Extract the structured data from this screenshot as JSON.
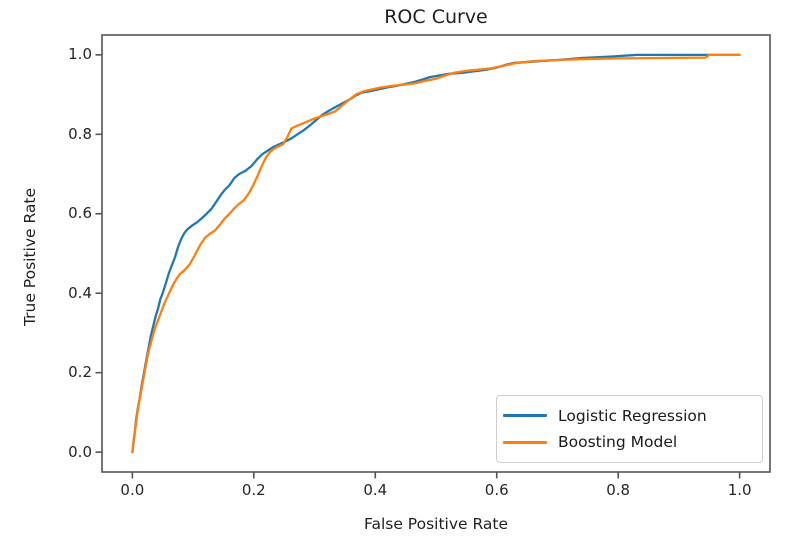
{
  "title": "ROC Curve",
  "axes": {
    "xlabel": "False Positive Rate",
    "ylabel": "True Positive Rate",
    "x_ticks": [
      "0.0",
      "0.2",
      "0.4",
      "0.6",
      "0.8",
      "1.0"
    ],
    "y_ticks": [
      "0.0",
      "0.2",
      "0.4",
      "0.6",
      "0.8",
      "1.0"
    ]
  },
  "legend": {
    "position": "lower right",
    "entries": [
      {
        "label": "Logistic Regression",
        "color": "#1f77b4"
      },
      {
        "label": "Boosting Model",
        "color": "#ff7f0e"
      }
    ]
  },
  "colors": {
    "logistic_regression": "#1f77b4",
    "boosting_model": "#ff7f0e",
    "spine": "#555555",
    "text": "#262626"
  },
  "chart_data": {
    "type": "line",
    "title": "ROC Curve",
    "xlabel": "False Positive Rate",
    "ylabel": "True Positive Rate",
    "xlim": [
      -0.05,
      1.05
    ],
    "ylim": [
      -0.05,
      1.05
    ],
    "grid": false,
    "legend_position": "lower right",
    "series": [
      {
        "name": "Logistic Regression",
        "color": "#1f77b4",
        "points": [
          [
            0.0,
            0.0
          ],
          [
            0.002,
            0.025
          ],
          [
            0.004,
            0.05
          ],
          [
            0.006,
            0.08
          ],
          [
            0.009,
            0.11
          ],
          [
            0.012,
            0.135
          ],
          [
            0.015,
            0.165
          ],
          [
            0.018,
            0.19
          ],
          [
            0.021,
            0.215
          ],
          [
            0.024,
            0.24
          ],
          [
            0.027,
            0.265
          ],
          [
            0.03,
            0.29
          ],
          [
            0.034,
            0.315
          ],
          [
            0.038,
            0.34
          ],
          [
            0.042,
            0.36
          ],
          [
            0.046,
            0.385
          ],
          [
            0.05,
            0.4
          ],
          [
            0.055,
            0.425
          ],
          [
            0.06,
            0.45
          ],
          [
            0.065,
            0.47
          ],
          [
            0.07,
            0.49
          ],
          [
            0.075,
            0.515
          ],
          [
            0.08,
            0.535
          ],
          [
            0.085,
            0.55
          ],
          [
            0.09,
            0.56
          ],
          [
            0.098,
            0.57
          ],
          [
            0.106,
            0.578
          ],
          [
            0.114,
            0.588
          ],
          [
            0.122,
            0.6
          ],
          [
            0.13,
            0.612
          ],
          [
            0.138,
            0.63
          ],
          [
            0.146,
            0.648
          ],
          [
            0.152,
            0.66
          ],
          [
            0.16,
            0.672
          ],
          [
            0.168,
            0.69
          ],
          [
            0.176,
            0.7
          ],
          [
            0.186,
            0.708
          ],
          [
            0.196,
            0.72
          ],
          [
            0.206,
            0.738
          ],
          [
            0.214,
            0.75
          ],
          [
            0.222,
            0.758
          ],
          [
            0.232,
            0.768
          ],
          [
            0.242,
            0.775
          ],
          [
            0.252,
            0.782
          ],
          [
            0.262,
            0.79
          ],
          [
            0.272,
            0.8
          ],
          [
            0.282,
            0.81
          ],
          [
            0.292,
            0.822
          ],
          [
            0.302,
            0.835
          ],
          [
            0.312,
            0.848
          ],
          [
            0.322,
            0.858
          ],
          [
            0.334,
            0.868
          ],
          [
            0.346,
            0.878
          ],
          [
            0.358,
            0.888
          ],
          [
            0.368,
            0.898
          ],
          [
            0.378,
            0.905
          ],
          [
            0.39,
            0.908
          ],
          [
            0.405,
            0.913
          ],
          [
            0.42,
            0.918
          ],
          [
            0.435,
            0.922
          ],
          [
            0.45,
            0.927
          ],
          [
            0.465,
            0.932
          ],
          [
            0.478,
            0.938
          ],
          [
            0.49,
            0.944
          ],
          [
            0.505,
            0.948
          ],
          [
            0.52,
            0.952
          ],
          [
            0.545,
            0.955
          ],
          [
            0.56,
            0.958
          ],
          [
            0.58,
            0.962
          ],
          [
            0.6,
            0.968
          ],
          [
            0.615,
            0.975
          ],
          [
            0.63,
            0.98
          ],
          [
            0.66,
            0.983
          ],
          [
            0.7,
            0.987
          ],
          [
            0.74,
            0.992
          ],
          [
            0.79,
            0.996
          ],
          [
            0.83,
            1.0
          ],
          [
            1.0,
            1.0
          ]
        ]
      },
      {
        "name": "Boosting Model",
        "color": "#ff7f0e",
        "points": [
          [
            0.0,
            0.0
          ],
          [
            0.002,
            0.03
          ],
          [
            0.005,
            0.06
          ],
          [
            0.008,
            0.095
          ],
          [
            0.011,
            0.125
          ],
          [
            0.014,
            0.15
          ],
          [
            0.017,
            0.175
          ],
          [
            0.02,
            0.2
          ],
          [
            0.023,
            0.225
          ],
          [
            0.026,
            0.25
          ],
          [
            0.03,
            0.272
          ],
          [
            0.034,
            0.295
          ],
          [
            0.038,
            0.315
          ],
          [
            0.043,
            0.335
          ],
          [
            0.048,
            0.355
          ],
          [
            0.053,
            0.375
          ],
          [
            0.059,
            0.395
          ],
          [
            0.065,
            0.415
          ],
          [
            0.071,
            0.432
          ],
          [
            0.078,
            0.448
          ],
          [
            0.086,
            0.458
          ],
          [
            0.094,
            0.472
          ],
          [
            0.101,
            0.49
          ],
          [
            0.107,
            0.508
          ],
          [
            0.113,
            0.525
          ],
          [
            0.12,
            0.54
          ],
          [
            0.128,
            0.55
          ],
          [
            0.136,
            0.558
          ],
          [
            0.144,
            0.572
          ],
          [
            0.152,
            0.588
          ],
          [
            0.16,
            0.6
          ],
          [
            0.168,
            0.614
          ],
          [
            0.176,
            0.625
          ],
          [
            0.184,
            0.635
          ],
          [
            0.192,
            0.652
          ],
          [
            0.199,
            0.672
          ],
          [
            0.206,
            0.695
          ],
          [
            0.213,
            0.72
          ],
          [
            0.22,
            0.742
          ],
          [
            0.228,
            0.758
          ],
          [
            0.238,
            0.768
          ],
          [
            0.248,
            0.775
          ],
          [
            0.256,
            0.795
          ],
          [
            0.262,
            0.815
          ],
          [
            0.272,
            0.822
          ],
          [
            0.282,
            0.828
          ],
          [
            0.294,
            0.836
          ],
          [
            0.306,
            0.843
          ],
          [
            0.32,
            0.85
          ],
          [
            0.334,
            0.858
          ],
          [
            0.345,
            0.872
          ],
          [
            0.356,
            0.886
          ],
          [
            0.368,
            0.9
          ],
          [
            0.38,
            0.908
          ],
          [
            0.395,
            0.913
          ],
          [
            0.41,
            0.918
          ],
          [
            0.428,
            0.922
          ],
          [
            0.446,
            0.925
          ],
          [
            0.464,
            0.928
          ],
          [
            0.48,
            0.934
          ],
          [
            0.5,
            0.94
          ],
          [
            0.515,
            0.948
          ],
          [
            0.53,
            0.955
          ],
          [
            0.55,
            0.96
          ],
          [
            0.57,
            0.963
          ],
          [
            0.59,
            0.966
          ],
          [
            0.61,
            0.972
          ],
          [
            0.63,
            0.979
          ],
          [
            0.66,
            0.984
          ],
          [
            0.7,
            0.987
          ],
          [
            0.74,
            0.989
          ],
          [
            0.8,
            0.991
          ],
          [
            0.87,
            0.992
          ],
          [
            0.944,
            0.993
          ],
          [
            0.95,
            1.0
          ],
          [
            1.0,
            1.0
          ]
        ]
      }
    ]
  }
}
